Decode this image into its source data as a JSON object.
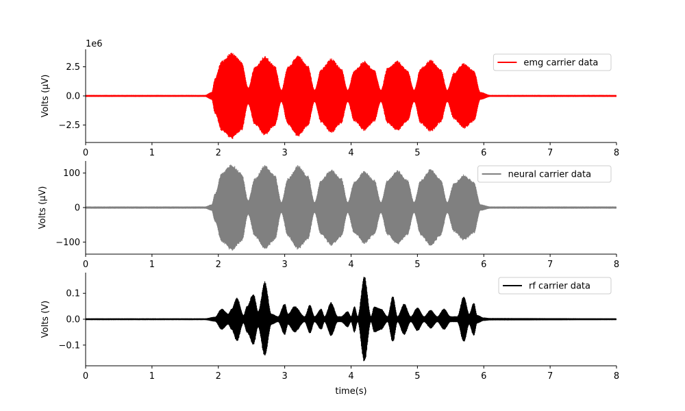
{
  "chart_data": [
    {
      "type": "line",
      "id": "emg",
      "legend": "emg carrier data",
      "color": "#ff0000",
      "ylabel": "Volts (μV)",
      "offset_text": "1e6",
      "xlim": [
        0,
        8
      ],
      "ylim": [
        -4.0,
        4.0
      ],
      "x_ticks": [
        0,
        1,
        2,
        3,
        4,
        5,
        6,
        7,
        8
      ],
      "x_tick_labels": [
        "0",
        "1",
        "2",
        "3",
        "4",
        "5",
        "6",
        "7",
        "8"
      ],
      "y_ticks": [
        -2.5,
        0,
        2.5
      ],
      "y_tick_labels": [
        "−2.5",
        "0.0",
        "2.5"
      ],
      "legend_position": "top-right",
      "envelope": {
        "x": [
          0,
          1.8,
          1.9,
          1.95,
          2.05,
          2.2,
          2.35,
          2.45,
          2.55,
          2.7,
          2.85,
          2.95,
          3.05,
          3.2,
          3.35,
          3.45,
          3.55,
          3.7,
          3.85,
          3.95,
          4.05,
          4.2,
          4.35,
          4.45,
          4.55,
          4.7,
          4.85,
          4.95,
          5.05,
          5.2,
          5.35,
          5.45,
          5.55,
          5.7,
          5.85,
          5.95,
          6.1,
          8
        ],
        "upper": [
          0.05,
          0.05,
          0.3,
          1.5,
          3.0,
          3.7,
          3.0,
          0.7,
          2.5,
          3.4,
          2.6,
          0.5,
          2.5,
          3.5,
          2.6,
          0.5,
          2.3,
          3.2,
          2.4,
          0.5,
          2.2,
          3.0,
          2.2,
          0.5,
          2.4,
          3.0,
          2.2,
          0.5,
          2.4,
          3.1,
          2.3,
          0.5,
          2.0,
          2.8,
          2.2,
          0.3,
          0.05,
          0.05
        ]
      }
    },
    {
      "type": "line",
      "id": "neural",
      "legend": "neural carrier data",
      "color": "#808080",
      "ylabel": "Volts (μV)",
      "xlim": [
        0,
        8
      ],
      "ylim": [
        -135,
        135
      ],
      "x_ticks": [
        0,
        1,
        2,
        3,
        4,
        5,
        6,
        7,
        8
      ],
      "x_tick_labels": [
        "0",
        "1",
        "2",
        "3",
        "4",
        "5",
        "6",
        "7",
        "8"
      ],
      "y_ticks": [
        -100,
        0,
        100
      ],
      "y_tick_labels": [
        "−100",
        "0",
        "100"
      ],
      "legend_position": "top-right",
      "envelope": {
        "x": [
          0,
          1.8,
          1.9,
          1.95,
          2.05,
          2.2,
          2.35,
          2.45,
          2.55,
          2.7,
          2.85,
          2.95,
          3.05,
          3.2,
          3.35,
          3.45,
          3.55,
          3.7,
          3.85,
          3.95,
          4.05,
          4.2,
          4.35,
          4.45,
          4.55,
          4.7,
          4.85,
          4.95,
          5.05,
          5.2,
          5.35,
          5.45,
          5.55,
          5.7,
          5.85,
          5.95,
          6.1,
          8
        ],
        "upper": [
          2,
          2,
          8,
          40,
          100,
          125,
          100,
          20,
          85,
          122,
          95,
          15,
          85,
          122,
          92,
          15,
          80,
          110,
          86,
          15,
          75,
          105,
          80,
          15,
          80,
          108,
          80,
          15,
          80,
          112,
          82,
          15,
          70,
          95,
          75,
          8,
          2,
          2
        ]
      }
    },
    {
      "type": "line",
      "id": "rf",
      "legend": "rf carrier data",
      "color": "#000000",
      "ylabel": "Volts (V)",
      "xlabel": "time(s)",
      "xlim": [
        0,
        8
      ],
      "ylim": [
        -0.18,
        0.18
      ],
      "x_ticks": [
        0,
        1,
        2,
        3,
        4,
        5,
        6,
        7,
        8
      ],
      "x_tick_labels": [
        "0",
        "1",
        "2",
        "3",
        "4",
        "5",
        "6",
        "7",
        "8"
      ],
      "y_ticks": [
        -0.1,
        0,
        0.1
      ],
      "y_tick_labels": [
        "−0.1",
        "0.0",
        "0.1"
      ],
      "legend_position": "top-right",
      "envelope": {
        "x": [
          0,
          1.8,
          1.95,
          2.05,
          2.15,
          2.2,
          2.28,
          2.38,
          2.43,
          2.53,
          2.6,
          2.7,
          2.8,
          2.9,
          3.0,
          3.05,
          3.15,
          3.3,
          3.38,
          3.45,
          3.55,
          3.6,
          3.7,
          3.8,
          3.85,
          3.95,
          4.0,
          4.05,
          4.1,
          4.2,
          4.3,
          4.35,
          4.45,
          4.55,
          4.63,
          4.7,
          4.8,
          4.9,
          5.0,
          5.1,
          5.2,
          5.3,
          5.4,
          5.5,
          5.6,
          5.7,
          5.78,
          5.85,
          5.9,
          6.0,
          6.1,
          8
        ],
        "upper": [
          0.002,
          0.002,
          0.008,
          0.04,
          0.02,
          0.04,
          0.085,
          0.015,
          0.05,
          0.1,
          0.03,
          0.145,
          0.02,
          0.01,
          0.06,
          0.02,
          0.05,
          0.01,
          0.055,
          0.01,
          0.04,
          0.01,
          0.065,
          0.01,
          0.01,
          0.03,
          0.01,
          0.05,
          0.01,
          0.168,
          0.01,
          0.05,
          0.04,
          0.01,
          0.09,
          0.01,
          0.06,
          0.01,
          0.045,
          0.01,
          0.035,
          0.01,
          0.04,
          0.01,
          0.01,
          0.09,
          0.02,
          0.065,
          0.015,
          0.005,
          0.003,
          0.002
        ]
      }
    }
  ]
}
